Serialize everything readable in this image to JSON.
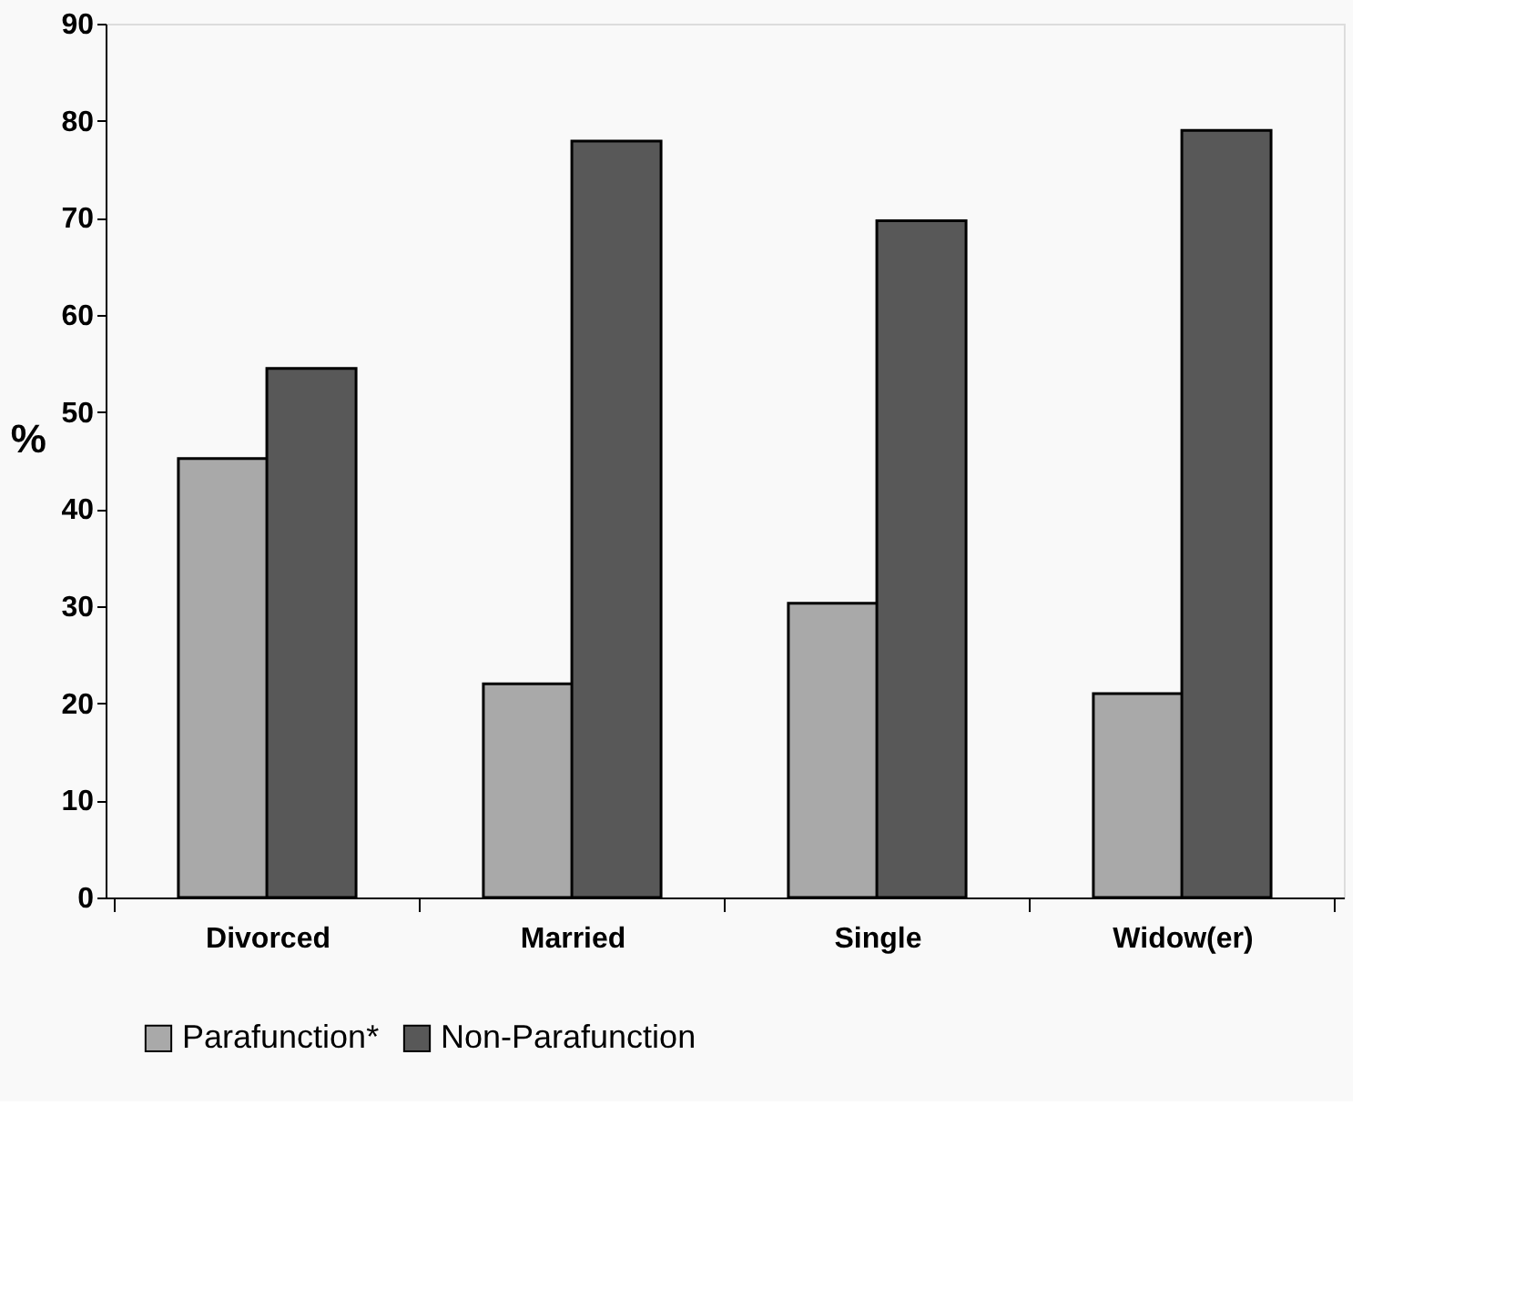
{
  "chart_data": {
    "type": "bar",
    "ylabel": "%",
    "categories": [
      "Divorced",
      "Married",
      "Single",
      "Widow(er)"
    ],
    "series": [
      {
        "name": "Parafunction*",
        "color": "#a9a9a9",
        "values": [
          45.2,
          22,
          30.3,
          21
        ]
      },
      {
        "name": "Non-Parafunction",
        "color": "#585858",
        "values": [
          54.5,
          77.9,
          69.7,
          79
        ]
      }
    ],
    "ylim": [
      0,
      90
    ],
    "yticks": [
      0,
      10,
      20,
      30,
      40,
      50,
      60,
      70,
      80,
      90
    ],
    "grid": false,
    "legend": "bottom"
  }
}
